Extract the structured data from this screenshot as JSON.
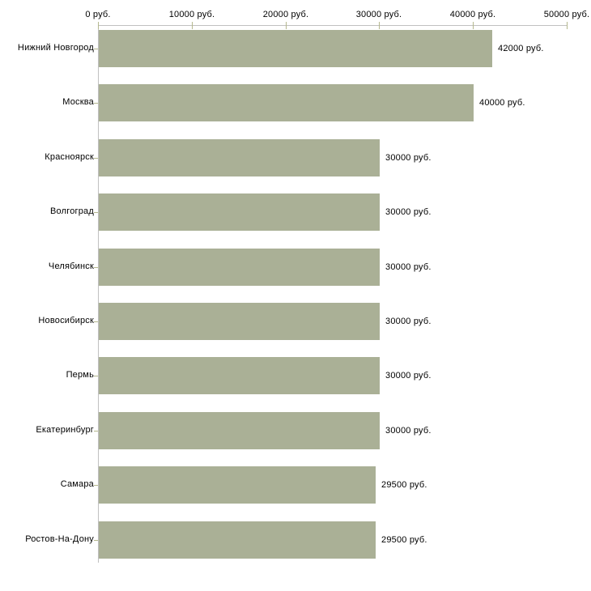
{
  "chart_data": {
    "type": "bar",
    "orientation": "horizontal",
    "title": "",
    "xlabel": "",
    "ylabel": "",
    "unit": "руб.",
    "categories": [
      "Нижний Новгород",
      "Москва",
      "Красноярск",
      "Волгоград",
      "Челябинск",
      "Новосибирск",
      "Пермь",
      "Екатеринбург",
      "Самара",
      "Ростов-На-Дону"
    ],
    "values": [
      42000,
      40000,
      30000,
      30000,
      30000,
      30000,
      30000,
      30000,
      29500,
      29500
    ],
    "value_labels": [
      "42000 руб.",
      "40000 руб.",
      "30000 руб.",
      "30000 руб.",
      "30000 руб.",
      "30000 руб.",
      "30000 руб.",
      "30000 руб.",
      "29500 руб.",
      "29500 руб."
    ],
    "x_axis": {
      "position": "top",
      "min": 0,
      "max": 50000,
      "ticks": [
        0,
        10000,
        20000,
        30000,
        40000,
        50000
      ],
      "tick_labels": [
        "0 руб.",
        "10000 руб.",
        "20000 руб.",
        "30000 руб.",
        "40000 руб.",
        "50000 руб."
      ]
    },
    "legend": null,
    "grid": false,
    "colors": {
      "bar": "#aab096",
      "axis_line": "#c0c0c0",
      "tick_mark": "#b5b88e",
      "text": "#000000",
      "background": "#ffffff"
    }
  }
}
